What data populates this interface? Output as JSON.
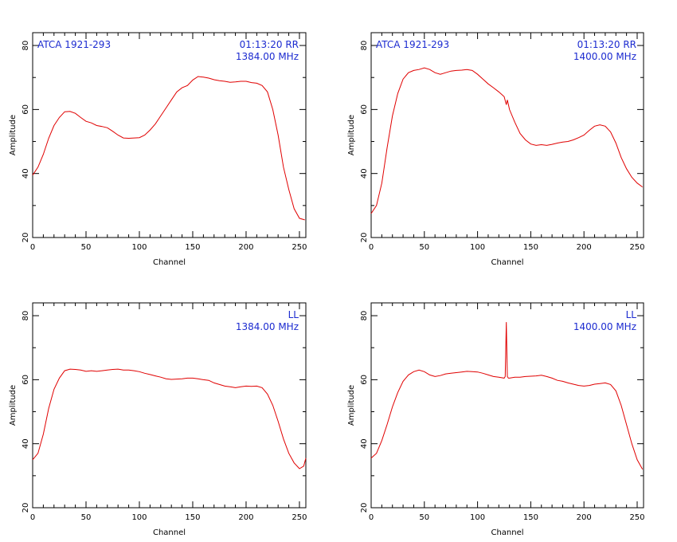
{
  "colors": {
    "trace": "#e00000",
    "annotation": "#1c2bd0",
    "axes": "#000000"
  },
  "chart_data": [
    {
      "type": "line",
      "xlabel": "Channel",
      "ylabel": "Amplitude",
      "xlim": [
        0,
        256
      ],
      "ylim": [
        20,
        84
      ],
      "xticks": [
        0,
        50,
        100,
        150,
        200,
        250
      ],
      "yticks": [
        20,
        40,
        60,
        80
      ],
      "annotations": {
        "top_left": "ATCA 1921-293",
        "top_right_1": "01:13:20  RR",
        "top_right_2": "1384.00 MHz"
      },
      "series": [
        {
          "x": [
            0,
            5,
            10,
            15,
            20,
            25,
            30,
            35,
            40,
            45,
            50,
            55,
            60,
            65,
            70,
            75,
            80,
            85,
            90,
            95,
            100,
            105,
            110,
            115,
            120,
            125,
            130,
            135,
            140,
            145,
            150,
            155,
            160,
            165,
            170,
            175,
            180,
            185,
            190,
            195,
            200,
            205,
            210,
            215,
            220,
            225,
            230,
            235,
            240,
            245,
            250,
            255
          ],
          "y": [
            39.5,
            42,
            46,
            51,
            55,
            57.5,
            59.3,
            59.4,
            58.8,
            57.5,
            56.3,
            55.8,
            55,
            54.7,
            54.3,
            53.2,
            52,
            51.1,
            51,
            51.1,
            51.2,
            52,
            53.6,
            55.5,
            58,
            60.5,
            63,
            65.5,
            66.8,
            67.5,
            69.2,
            70.3,
            70.1,
            69.8,
            69.3,
            69,
            68.8,
            68.5,
            68.6,
            68.8,
            68.8,
            68.4,
            68.2,
            67.5,
            65.5,
            60,
            52,
            42,
            35,
            29,
            26,
            25.5
          ]
        }
      ]
    },
    {
      "type": "line",
      "xlabel": "Channel",
      "ylabel": "Amplitude",
      "xlim": [
        0,
        256
      ],
      "ylim": [
        20,
        84
      ],
      "xticks": [
        0,
        50,
        100,
        150,
        200,
        250
      ],
      "yticks": [
        20,
        40,
        60,
        80
      ],
      "annotations": {
        "top_left": "ATCA 1921-293",
        "top_right_1": "01:13:20  RR",
        "top_right_2": "1400.00 MHz"
      },
      "series": [
        {
          "x": [
            0,
            5,
            10,
            15,
            20,
            25,
            30,
            35,
            40,
            45,
            50,
            55,
            60,
            65,
            70,
            75,
            80,
            85,
            90,
            95,
            100,
            105,
            110,
            115,
            120,
            125,
            127,
            128,
            130,
            135,
            140,
            145,
            150,
            155,
            160,
            165,
            170,
            175,
            180,
            185,
            190,
            195,
            200,
            205,
            210,
            215,
            220,
            225,
            230,
            235,
            240,
            245,
            250,
            255
          ],
          "y": [
            27.5,
            30,
            37,
            48,
            58,
            65,
            69.5,
            71.5,
            72.2,
            72.5,
            73,
            72.5,
            71.5,
            71,
            71.5,
            72,
            72.2,
            72.3,
            72.5,
            72.2,
            71,
            69.5,
            68,
            66.8,
            65.5,
            64,
            61.5,
            63,
            60,
            56,
            52.5,
            50.5,
            49.2,
            48.8,
            49,
            48.8,
            49.1,
            49.5,
            49.8,
            50,
            50.5,
            51.2,
            52,
            53.5,
            54.8,
            55.2,
            54.8,
            53,
            49.5,
            45,
            41.5,
            38.8,
            37,
            35.8
          ]
        }
      ]
    },
    {
      "type": "line",
      "xlabel": "Channel",
      "ylabel": "Amplitude",
      "xlim": [
        0,
        256
      ],
      "ylim": [
        20,
        84
      ],
      "xticks": [
        0,
        50,
        100,
        150,
        200,
        250
      ],
      "yticks": [
        20,
        40,
        60,
        80
      ],
      "annotations": {
        "top_left": "",
        "top_right_1": "LL",
        "top_right_2": "1384.00 MHz"
      },
      "series": [
        {
          "x": [
            0,
            5,
            10,
            15,
            20,
            25,
            30,
            35,
            40,
            45,
            50,
            55,
            60,
            65,
            70,
            75,
            80,
            85,
            90,
            95,
            100,
            105,
            110,
            115,
            120,
            125,
            130,
            135,
            140,
            145,
            150,
            155,
            160,
            165,
            170,
            175,
            180,
            185,
            190,
            195,
            200,
            205,
            210,
            215,
            220,
            225,
            230,
            235,
            240,
            245,
            250,
            254,
            256
          ],
          "y": [
            35,
            37,
            43,
            51,
            57,
            60.5,
            62.8,
            63.3,
            63.2,
            63,
            62.6,
            62.8,
            62.6,
            62.8,
            63,
            63.2,
            63.3,
            63,
            63,
            62.8,
            62.5,
            62,
            61.6,
            61.2,
            60.8,
            60.3,
            60.1,
            60.2,
            60.3,
            60.5,
            60.5,
            60.3,
            60,
            59.8,
            59,
            58.5,
            58,
            57.8,
            57.5,
            57.8,
            58,
            57.9,
            58,
            57.5,
            55.5,
            52,
            47,
            41.5,
            37,
            34,
            32.2,
            33,
            35.5
          ]
        }
      ]
    },
    {
      "type": "line",
      "xlabel": "Channel",
      "ylabel": "Amplitude",
      "xlim": [
        0,
        256
      ],
      "ylim": [
        20,
        84
      ],
      "xticks": [
        0,
        50,
        100,
        150,
        200,
        250
      ],
      "yticks": [
        20,
        40,
        60,
        80
      ],
      "annotations": {
        "top_left": "",
        "top_right_1": "LL",
        "top_right_2": "1400.00 MHz"
      },
      "series": [
        {
          "x": [
            0,
            5,
            10,
            15,
            20,
            25,
            30,
            35,
            40,
            45,
            50,
            55,
            60,
            65,
            70,
            75,
            80,
            85,
            90,
            95,
            100,
            105,
            110,
            115,
            120,
            125,
            126,
            127,
            128,
            129,
            130,
            135,
            140,
            145,
            150,
            155,
            160,
            165,
            170,
            175,
            180,
            185,
            190,
            195,
            200,
            205,
            210,
            215,
            220,
            225,
            230,
            235,
            240,
            245,
            250,
            255
          ],
          "y": [
            35.5,
            37,
            41,
            46,
            51.5,
            56,
            59.5,
            61.5,
            62.5,
            63,
            62.5,
            61.5,
            61,
            61.3,
            61.8,
            62,
            62.2,
            62.4,
            62.6,
            62.5,
            62.4,
            62,
            61.5,
            61,
            60.8,
            60.5,
            61,
            78,
            61,
            60.5,
            60.5,
            60.8,
            60.8,
            61,
            61.1,
            61.2,
            61.4,
            61,
            60.5,
            59.8,
            59.5,
            59,
            58.6,
            58.2,
            58,
            58.2,
            58.6,
            58.8,
            59,
            58.5,
            56.5,
            52,
            46,
            40,
            35,
            32
          ]
        }
      ]
    }
  ]
}
